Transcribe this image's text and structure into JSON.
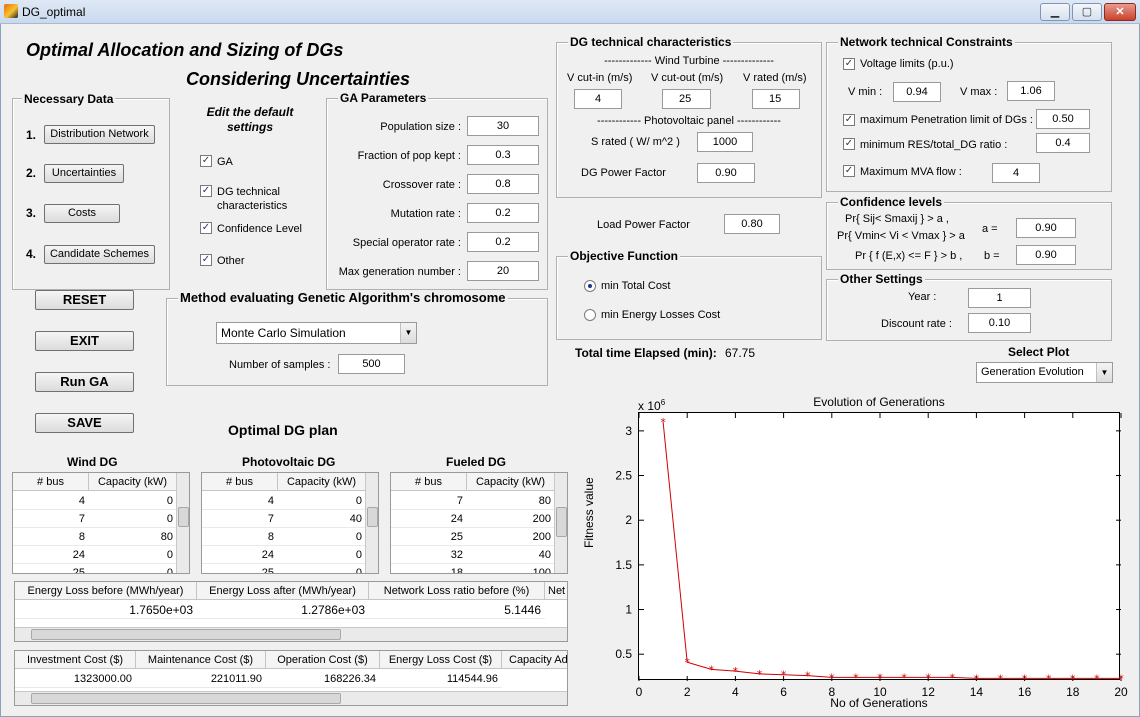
{
  "window": {
    "title": "DG_optimal"
  },
  "header": {
    "line1": "Optimal Allocation and Sizing of DGs",
    "line2": "Considering Uncertainties"
  },
  "necessary_data": {
    "title": "Necessary Data",
    "items": [
      {
        "num": "1.",
        "label": "Distribution Network"
      },
      {
        "num": "2.",
        "label": "Uncertainties"
      },
      {
        "num": "3.",
        "label": "Costs"
      },
      {
        "num": "4.",
        "label": "Candidate Schemes"
      }
    ]
  },
  "edit_defaults": {
    "title_l1": "Edit the default",
    "title_l2": "settings",
    "items": [
      {
        "label": "GA",
        "checked": true
      },
      {
        "label": "DG technical",
        "label2": "characteristics",
        "checked": true
      },
      {
        "label": "Confidence Level",
        "checked": true
      },
      {
        "label": "Other",
        "checked": true
      }
    ]
  },
  "ga_params": {
    "title": "GA Parameters",
    "rows": [
      {
        "label": "Population size :",
        "value": "30"
      },
      {
        "label": "Fraction of pop kept :",
        "value": "0.3"
      },
      {
        "label": "Crossover rate :",
        "value": "0.8"
      },
      {
        "label": "Mutation rate :",
        "value": "0.2"
      },
      {
        "label": "Special operator rate :",
        "value": "0.2"
      },
      {
        "label": "Max generation number :",
        "value": "20"
      }
    ]
  },
  "buttons": {
    "reset": "RESET",
    "exit": "EXIT",
    "run": "Run GA",
    "save": "SAVE"
  },
  "method": {
    "title": "Method evaluating Genetic Algorithm's chromosome",
    "selected": "Monte Carlo Simulation",
    "samples_label": "Number of samples :",
    "samples": "500"
  },
  "dg_tech": {
    "title": "DG technical characteristics",
    "wind_header": "------------- Wind  Turbine --------------",
    "wind_cols": [
      {
        "label": "V cut-in (m/s)",
        "value": "4"
      },
      {
        "label": "V cut-out (m/s)",
        "value": "25"
      },
      {
        "label": "V rated (m/s)",
        "value": "15"
      }
    ],
    "pv_header": "------------ Photovoltaic panel ------------",
    "s_rated_label": "S rated ( W/ m^2 )",
    "s_rated": "1000",
    "pf_label": "DG Power Factor",
    "pf": "0.90"
  },
  "load_pf": {
    "label": "Load Power Factor",
    "value": "0.80"
  },
  "objective": {
    "title": "Objective Function",
    "options": [
      {
        "label": "min Total Cost",
        "selected": true
      },
      {
        "label": "min Energy Losses Cost",
        "selected": false
      }
    ]
  },
  "elapsed": {
    "label": "Total time Elapsed (min):",
    "value": "67.75"
  },
  "network": {
    "title": "Network technical Constraints",
    "voltage_label": "Voltage limits (p.u.)",
    "vmin_label": "V min :",
    "vmin": "0.94",
    "vmax_label": "V max :",
    "vmax": "1.06",
    "pen_label": "maximum Penetration limit of DGs :",
    "pen": "0.50",
    "res_label": "minimum  RES/total_DG ratio :",
    "res": "0.4",
    "mva_label": "Maximum MVA  flow   :",
    "mva": "4"
  },
  "confidence": {
    "title": "Confidence levels",
    "l1": "Pr{ Sij< Smaxij } > a ,",
    "l2": "Pr{ Vmin< Vi < Vmax } > a",
    "l3": "Pr { f (E,x) <= F } > b ,",
    "a_label": "a =",
    "a": "0.90",
    "b_label": "b =",
    "b": "0.90"
  },
  "other": {
    "title": "Other Settings",
    "year_label": "Year      :",
    "year": "1",
    "discount_label": "Discount rate :",
    "discount": "0.10"
  },
  "select_plot": {
    "label": "Select Plot",
    "selected": "Generation Evolution"
  },
  "plan": {
    "title": "Optimal DG plan",
    "wind": {
      "title": "Wind DG",
      "headers": [
        "# bus",
        "Capacity (kW)"
      ],
      "rows": [
        [
          "4",
          "0"
        ],
        [
          "7",
          "0"
        ],
        [
          "8",
          "80"
        ],
        [
          "24",
          "0"
        ],
        [
          "25",
          "0"
        ]
      ]
    },
    "pv": {
      "title": "Photovoltaic DG",
      "headers": [
        "# bus",
        "Capacity (kW)"
      ],
      "rows": [
        [
          "4",
          "0"
        ],
        [
          "7",
          "40"
        ],
        [
          "8",
          "0"
        ],
        [
          "24",
          "0"
        ],
        [
          "25",
          "0"
        ]
      ]
    },
    "fueled": {
      "title": "Fueled DG",
      "headers": [
        "# bus",
        "Capacity (kW)"
      ],
      "rows": [
        [
          "7",
          "80"
        ],
        [
          "24",
          "200"
        ],
        [
          "25",
          "200"
        ],
        [
          "32",
          "40"
        ],
        [
          "18",
          "100"
        ]
      ]
    }
  },
  "loss_table": {
    "headers": [
      "Energy Loss before (MWh/year)",
      "Energy Loss after (MWh/year)",
      "Network Loss ratio before (%)",
      "Net"
    ],
    "values": [
      "1.7650e+03",
      "1.2786e+03",
      "5.1446",
      ""
    ]
  },
  "cost_table": {
    "headers": [
      "Investment Cost ($)",
      "Maintenance Cost ($)",
      "Operation Cost ($)",
      "Energy Loss Cost ($)",
      "Capacity Ad"
    ],
    "values": [
      "1323000.00",
      "221011.90",
      "168226.34",
      "114544.96",
      ""
    ]
  },
  "chart_data": {
    "type": "line",
    "title": "Evolution of Generations",
    "xlabel": "No of Generations",
    "ylabel": "Fitness value",
    "y_multiplier": "x 10",
    "y_exponent": "6",
    "x": [
      1,
      2,
      3,
      4,
      5,
      6,
      7,
      8,
      9,
      10,
      11,
      12,
      13,
      14,
      15,
      16,
      17,
      18,
      19,
      20
    ],
    "values": [
      3.1,
      0.41,
      0.33,
      0.31,
      0.28,
      0.27,
      0.26,
      0.24,
      0.24,
      0.24,
      0.24,
      0.24,
      0.24,
      0.23,
      0.23,
      0.23,
      0.23,
      0.23,
      0.23,
      0.23
    ],
    "xlim": [
      0,
      20
    ],
    "ylim": [
      0.2,
      3.2
    ],
    "xticks": [
      "0",
      "2",
      "4",
      "6",
      "8",
      "10",
      "12",
      "14",
      "16",
      "18",
      "20"
    ],
    "yticks": [
      "0.5",
      "1",
      "1.5",
      "2",
      "2.5",
      "3"
    ],
    "color": "#d00000"
  }
}
